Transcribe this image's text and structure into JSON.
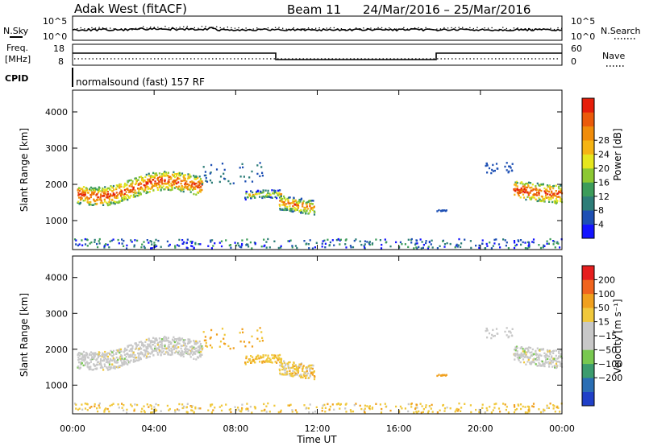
{
  "header": {
    "station": "Adak West (fitACF)",
    "beam": "Beam 11",
    "date_range": "24/Mar/2016 – 25/Mar/2016"
  },
  "top_panels": {
    "nsky_label": "N.Sky",
    "nsearch_label": "N.Search",
    "noise_ticks_left": [
      "10^5",
      "10^0"
    ],
    "noise_ticks_right": [
      "10^5",
      "10^0"
    ],
    "freq_label_1": "Freq.",
    "freq_label_2": "[MHz]",
    "freq_ticks": [
      "18",
      "8"
    ],
    "nave_label": "Nave",
    "nave_ticks": [
      "60",
      "0"
    ],
    "cpid_label": "CPID",
    "cpid_text": "normalsound (fast) 157 RF"
  },
  "chart_data": [
    {
      "type": "heatmap",
      "name": "power",
      "ylabel": "Slant Range [km]",
      "xlabel": "Time UT",
      "ylim": [
        200,
        4600
      ],
      "yticks": [
        "1000",
        "2000",
        "3000",
        "4000"
      ],
      "xticks": [
        "00:00",
        "04:00",
        "08:00",
        "12:00",
        "16:00",
        "20:00",
        "00:00"
      ],
      "colorbar_label": "Power [dB]",
      "colorbar_ticks": [
        "4",
        "8",
        "12",
        "16",
        "20",
        "24",
        "28"
      ],
      "colorbar_colors": [
        "#1414ff",
        "#1e50b4",
        "#2d7d78",
        "#3c9c5a",
        "#8cc832",
        "#e6e61e",
        "#f5b414",
        "#f08c0a",
        "#eb5a0a",
        "#e61e0a"
      ]
    },
    {
      "type": "heatmap",
      "name": "velocity",
      "ylabel": "Slant Range [km]",
      "xlabel": "Time UT",
      "ylim": [
        200,
        4600
      ],
      "yticks": [
        "1000",
        "2000",
        "3000",
        "4000"
      ],
      "xticks": [
        "00:00",
        "04:00",
        "08:00",
        "12:00",
        "16:00",
        "20:00",
        "00:00"
      ],
      "colorbar_label": "Velocity [m s⁻¹]",
      "colorbar_ticks": [
        "200",
        "100",
        "50",
        "15",
        "−15",
        "−50",
        "−100",
        "−200"
      ],
      "colorbar_colors": [
        "#2040c8",
        "#2a6eb4",
        "#3c9c6e",
        "#78c850",
        "#c8c8c8",
        "#c8c8c8",
        "#f0c83c",
        "#f0a01e",
        "#f0641e",
        "#e61e1e"
      ]
    }
  ],
  "time_axis_label": "Time UT"
}
